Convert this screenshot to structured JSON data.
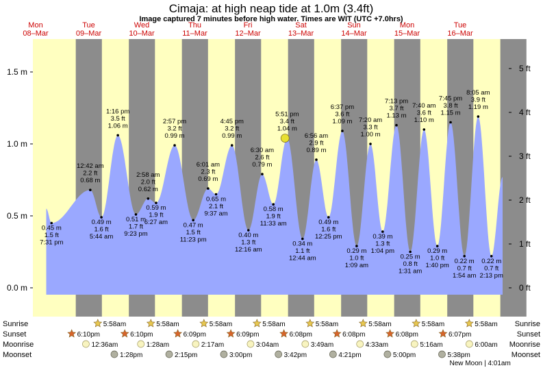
{
  "header": {
    "title": "Cimaja: at high  neap tide at 1.0m (3.4ft)",
    "subtitle": "Image captured 7 minutes before high water. Times are WIT (UTC +7.0hrs)"
  },
  "chart_data": {
    "type": "area",
    "title": "Cimaja: at high  neap tide at 1.0m (3.4ft)",
    "x_unit": "time",
    "left_axis": {
      "unit": "m",
      "ticks": [
        "0.0 m",
        "0.5 m",
        "1.0 m",
        "1.5 m"
      ],
      "values": [
        0.0,
        0.5,
        1.0,
        1.5
      ]
    },
    "right_axis": {
      "unit": "ft",
      "ticks": [
        "0 ft",
        "1 ft",
        "2 ft",
        "3 ft",
        "4 ft",
        "5 ft"
      ],
      "values": [
        0,
        1,
        2,
        3,
        4,
        5
      ]
    },
    "ylim_m": [
      -0.15,
      1.72
    ],
    "days": [
      {
        "dow": "Mon",
        "date": "08–Mar"
      },
      {
        "dow": "Tue",
        "date": "09–Mar"
      },
      {
        "dow": "Wed",
        "date": "10–Mar"
      },
      {
        "dow": "Thu",
        "date": "11–Mar"
      },
      {
        "dow": "Fri",
        "date": "12–Mar"
      },
      {
        "dow": "Sat",
        "date": "13–Mar"
      },
      {
        "dow": "Sun",
        "date": "14–Mar"
      },
      {
        "dow": "Mon",
        "date": "15–Mar"
      },
      {
        "dow": "Tue",
        "date": "16–Mar"
      }
    ],
    "current": {
      "day": 4.7,
      "height_m": 1.04
    },
    "tides": [
      {
        "day": 0.3,
        "m": 0.45,
        "time": "7:31 pm",
        "ft": "1.5 ft",
        "h": "0.45 m",
        "type": "low"
      },
      {
        "day": 1.03,
        "m": 0.68,
        "time": "12:42 am",
        "ft": "2.2 ft",
        "h": "0.68 m",
        "type": "high"
      },
      {
        "day": 1.24,
        "m": 0.49,
        "time": "5:44 am",
        "ft": "1.6 ft",
        "h": "0.49 m",
        "type": "low"
      },
      {
        "day": 1.55,
        "m": 1.06,
        "time": "1:16 pm",
        "ft": "3.5 ft",
        "h": "1.06 m",
        "type": "high"
      },
      {
        "day": 1.89,
        "m": 0.51,
        "time": "9:23 pm",
        "ft": "1.7 ft",
        "h": "0.51 m",
        "type": "low"
      },
      {
        "day": 2.12,
        "m": 0.62,
        "time": "2:58 am",
        "ft": "2.0 ft",
        "h": "0.62 m",
        "type": "high"
      },
      {
        "day": 2.27,
        "m": 0.59,
        "time": "6:27 am",
        "ft": "1.9 ft",
        "h": "0.59 m",
        "type": "low"
      },
      {
        "day": 2.62,
        "m": 0.99,
        "time": "2:57 pm",
        "ft": "3.2 ft",
        "h": "0.99 m",
        "type": "high"
      },
      {
        "day": 2.97,
        "m": 0.47,
        "time": "11:23 pm",
        "ft": "1.5 ft",
        "h": "0.47 m",
        "type": "low"
      },
      {
        "day": 3.25,
        "m": 0.69,
        "time": "6:01 am",
        "ft": "2.3 ft",
        "h": "0.69 m",
        "type": "high"
      },
      {
        "day": 3.4,
        "m": 0.65,
        "time": "9:37 am",
        "ft": "2.1 ft",
        "h": "0.65 m",
        "type": "low"
      },
      {
        "day": 3.7,
        "m": 0.99,
        "time": "4:45 pm",
        "ft": "3.2 ft",
        "h": "0.99 m",
        "type": "high"
      },
      {
        "day": 4.01,
        "m": 0.4,
        "time": "12:16 am",
        "ft": "1.3 ft",
        "h": "0.40 m",
        "type": "low"
      },
      {
        "day": 4.27,
        "m": 0.79,
        "time": "6:30 am",
        "ft": "2.6 ft",
        "h": "0.79 m",
        "type": "high"
      },
      {
        "day": 4.48,
        "m": 0.58,
        "time": "11:33 am",
        "ft": "1.9 ft",
        "h": "0.58 m",
        "type": "low"
      },
      {
        "day": 4.74,
        "m": 1.04,
        "time": "5:51 pm",
        "ft": "3.4 ft",
        "h": "1.04 m",
        "type": "high"
      },
      {
        "day": 5.03,
        "m": 0.34,
        "time": "12:44 am",
        "ft": "1.1 ft",
        "h": "0.34 m",
        "type": "low"
      },
      {
        "day": 5.29,
        "m": 0.89,
        "time": "6:56 am",
        "ft": "2.9 ft",
        "h": "0.89 m",
        "type": "high"
      },
      {
        "day": 5.52,
        "m": 0.49,
        "time": "12:25 pm",
        "ft": "1.6 ft",
        "h": "0.49 m",
        "type": "low"
      },
      {
        "day": 5.78,
        "m": 1.09,
        "time": "6:37 pm",
        "ft": "3.6 ft",
        "h": "1.09 m",
        "type": "high"
      },
      {
        "day": 6.05,
        "m": 0.29,
        "time": "1:09 am",
        "ft": "1.0 ft",
        "h": "0.29 m",
        "type": "low"
      },
      {
        "day": 6.31,
        "m": 1.0,
        "time": "7:20 am",
        "ft": "3.3 ft",
        "h": "1.00 m",
        "type": "high"
      },
      {
        "day": 6.54,
        "m": 0.39,
        "time": "1:04 pm",
        "ft": "1.3 ft",
        "h": "0.39 m",
        "type": "low"
      },
      {
        "day": 6.8,
        "m": 1.13,
        "time": "7:13 pm",
        "ft": "3.7 ft",
        "h": "1.13 m",
        "type": "high"
      },
      {
        "day": 7.06,
        "m": 0.25,
        "time": "1:31 am",
        "ft": "0.8 ft",
        "h": "0.25 m",
        "type": "low"
      },
      {
        "day": 7.32,
        "m": 1.1,
        "time": "7:40 am",
        "ft": "3.6 ft",
        "h": "1.10 m",
        "type": "high"
      },
      {
        "day": 7.57,
        "m": 0.29,
        "time": "1:40 pm",
        "ft": "1.0 ft",
        "h": "0.29 m",
        "type": "low"
      },
      {
        "day": 7.82,
        "m": 1.15,
        "time": "7:45 pm",
        "ft": "3.8 ft",
        "h": "1.15 m",
        "type": "high"
      },
      {
        "day": 8.08,
        "m": 0.22,
        "time": "1:54 am",
        "ft": "0.7 ft",
        "h": "0.22 m",
        "type": "low"
      },
      {
        "day": 8.34,
        "m": 1.19,
        "time": "8:05 am",
        "ft": "3.9 ft",
        "h": "1.19 m",
        "type": "high"
      },
      {
        "day": 8.59,
        "m": 0.22,
        "time": "2:13 pm",
        "ft": "0.7 ft",
        "h": "0.22 m",
        "type": "low"
      }
    ],
    "tail_end": {
      "day": 8.8,
      "m": 0.77
    }
  },
  "rows": {
    "labels": [
      "Sunrise",
      "Sunset",
      "Moonrise",
      "Moonset"
    ],
    "sunrise": [
      {
        "day": 1.249,
        "text": "5:58am"
      },
      {
        "day": 2.249,
        "text": "5:58am"
      },
      {
        "day": 3.249,
        "text": "5:58am"
      },
      {
        "day": 4.249,
        "text": "5:58am"
      },
      {
        "day": 5.249,
        "text": "5:58am"
      },
      {
        "day": 6.249,
        "text": "5:58am"
      },
      {
        "day": 7.249,
        "text": "5:58am"
      },
      {
        "day": 8.249,
        "text": "5:58am"
      }
    ],
    "sunset": [
      {
        "day": 0.757,
        "text": "6:10pm"
      },
      {
        "day": 1.757,
        "text": "6:10pm"
      },
      {
        "day": 2.756,
        "text": "6:09pm"
      },
      {
        "day": 3.756,
        "text": "6:09pm"
      },
      {
        "day": 4.756,
        "text": "6:08pm"
      },
      {
        "day": 5.756,
        "text": "6:08pm"
      },
      {
        "day": 6.756,
        "text": "6:08pm"
      },
      {
        "day": 7.755,
        "text": "6:07pm"
      }
    ],
    "moonrise": [
      {
        "day": 1.025,
        "text": "12:36am"
      },
      {
        "day": 2.061,
        "text": "1:28am"
      },
      {
        "day": 3.095,
        "text": "2:17am"
      },
      {
        "day": 4.128,
        "text": "3:04am"
      },
      {
        "day": 5.159,
        "text": "3:49am"
      },
      {
        "day": 6.19,
        "text": "4:33am"
      },
      {
        "day": 7.217,
        "text": "5:16am"
      },
      {
        "day": 8.25,
        "text": "6:00am"
      }
    ],
    "moonset": [
      {
        "day": 1.561,
        "text": "1:28pm"
      },
      {
        "day": 2.594,
        "text": "2:15pm"
      },
      {
        "day": 3.625,
        "text": "3:00pm"
      },
      {
        "day": 4.654,
        "text": "3:42pm"
      },
      {
        "day": 5.682,
        "text": "4:21pm"
      },
      {
        "day": 6.708,
        "text": "5:00pm"
      },
      {
        "day": 7.735,
        "text": "5:38pm"
      }
    ],
    "moon_phase": {
      "day": 8.17,
      "text": "New Moon | 4:01am"
    }
  },
  "colors": {
    "day_bg": "#ffffc0",
    "night_bg": "#8c8c8c",
    "water": "#9aa8ff",
    "day_label": "#cc0000",
    "sun_icon": "#e8c850",
    "sunset_icon": "#d8642a",
    "moonrise_icon": "#f8f4c0",
    "moonset_icon": "#b0b0a0",
    "current_marker": "#e8e030"
  }
}
